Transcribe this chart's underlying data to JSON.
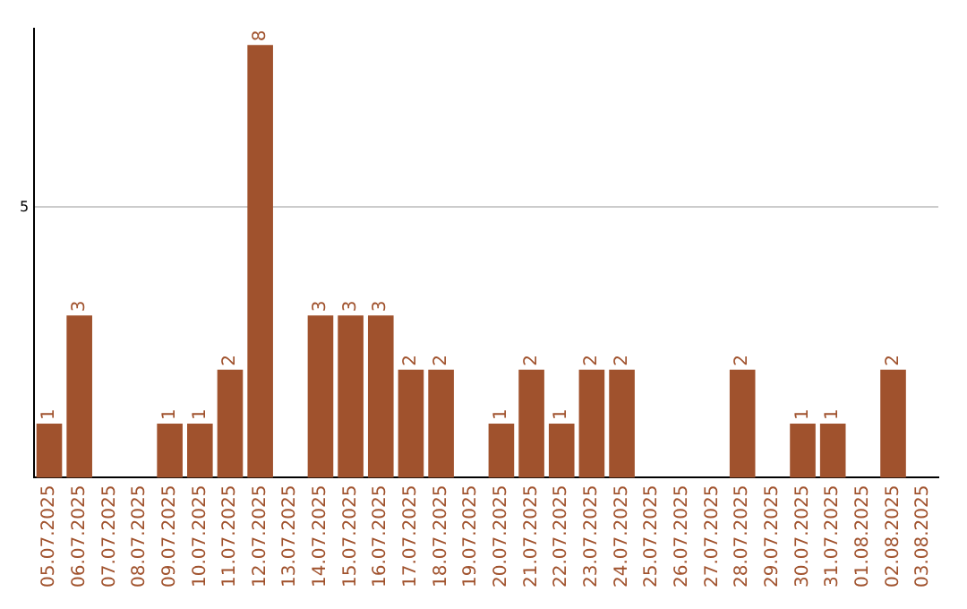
{
  "chart_data": {
    "type": "bar",
    "categories": [
      "05.07.2025",
      "06.07.2025",
      "07.07.2025",
      "08.07.2025",
      "09.07.2025",
      "10.07.2025",
      "11.07.2025",
      "12.07.2025",
      "13.07.2025",
      "14.07.2025",
      "15.07.2025",
      "16.07.2025",
      "17.07.2025",
      "18.07.2025",
      "19.07.2025",
      "20.07.2025",
      "21.07.2025",
      "22.07.2025",
      "23.07.2025",
      "24.07.2025",
      "25.07.2025",
      "26.07.2025",
      "27.07.2025",
      "28.07.2025",
      "29.07.2025",
      "30.07.2025",
      "31.07.2025",
      "01.08.2025",
      "02.08.2025",
      "03.08.2025"
    ],
    "values": [
      1,
      3,
      0,
      0,
      1,
      1,
      2,
      8,
      0,
      3,
      3,
      3,
      2,
      2,
      0,
      1,
      2,
      1,
      2,
      2,
      0,
      0,
      0,
      2,
      0,
      1,
      1,
      0,
      2,
      0
    ],
    "value_labels": [
      "1",
      "3",
      null,
      null,
      "1",
      "1",
      "2",
      "8",
      null,
      "3",
      "3",
      "3",
      "2",
      "2",
      null,
      "1",
      "2",
      "1",
      "2",
      "2",
      null,
      null,
      null,
      "2",
      null,
      "1",
      "1",
      null,
      "2",
      null
    ],
    "color": "#a0522d",
    "ylim": [
      0,
      8.3
    ],
    "yticks": [
      5
    ],
    "grid": "y",
    "legend": false
  }
}
